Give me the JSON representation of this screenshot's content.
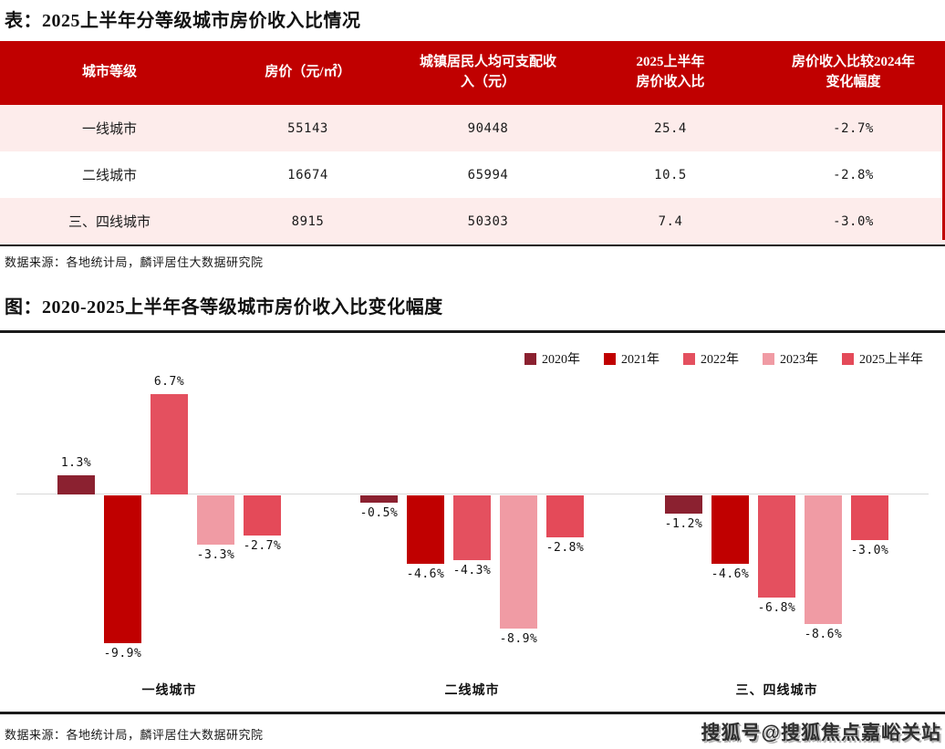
{
  "table_section": {
    "title": "表：2025上半年分等级城市房价收入比情况",
    "source": "数据来源：各地统计局，麟评居住大数据研究院",
    "header_bg": "#c00000",
    "row_alt_bg": "#fdeceb"
  },
  "chart_section": {
    "title": "图：2020-2025上半年各等级城市房价收入比变化幅度",
    "source": "数据来源：各地统计局，麟评居住大数据研究院"
  },
  "watermark": "搜狐号@搜狐焦点嘉峪关站",
  "chart_data": [
    {
      "type": "table",
      "title": "2025上半年分等级城市房价收入比情况",
      "columns": [
        "城市等级",
        "房价（元/㎡）",
        "城镇居民人均可支配收\n入（元）",
        "2025上半年\n房价收入比",
        "房价收入比较2024年\n变化幅度"
      ],
      "rows": [
        [
          "一线城市",
          "55143",
          "90448",
          "25.4",
          "-2.7%"
        ],
        [
          "二线城市",
          "16674",
          "65994",
          "10.5",
          "-2.8%"
        ],
        [
          "三、四线城市",
          "8915",
          "50303",
          "7.4",
          "-3.0%"
        ]
      ]
    },
    {
      "type": "bar",
      "title": "2020-2025上半年各等级城市房价收入比变化幅度",
      "categories": [
        "一线城市",
        "二线城市",
        "三、四线城市"
      ],
      "series": [
        {
          "name": "2020年",
          "color": "#8b2130",
          "values": [
            1.3,
            -0.5,
            -1.2
          ]
        },
        {
          "name": "2021年",
          "color": "#c00000",
          "values": [
            -9.9,
            -4.6,
            -4.6
          ]
        },
        {
          "name": "2022年",
          "color": "#e4505f",
          "values": [
            6.7,
            -4.3,
            -6.8
          ]
        },
        {
          "name": "2023年",
          "color": "#f09ba4",
          "values": [
            -3.3,
            -8.9,
            -8.6
          ]
        },
        {
          "name": "2025上半年",
          "color": "#e44a59",
          "values": [
            -2.7,
            -2.8,
            -3.0
          ]
        }
      ],
      "ylim": [
        -11,
        8
      ],
      "grid": false,
      "legend_position": "top-right",
      "value_label_format": "{v}%",
      "xlabel": "",
      "ylabel": ""
    }
  ]
}
